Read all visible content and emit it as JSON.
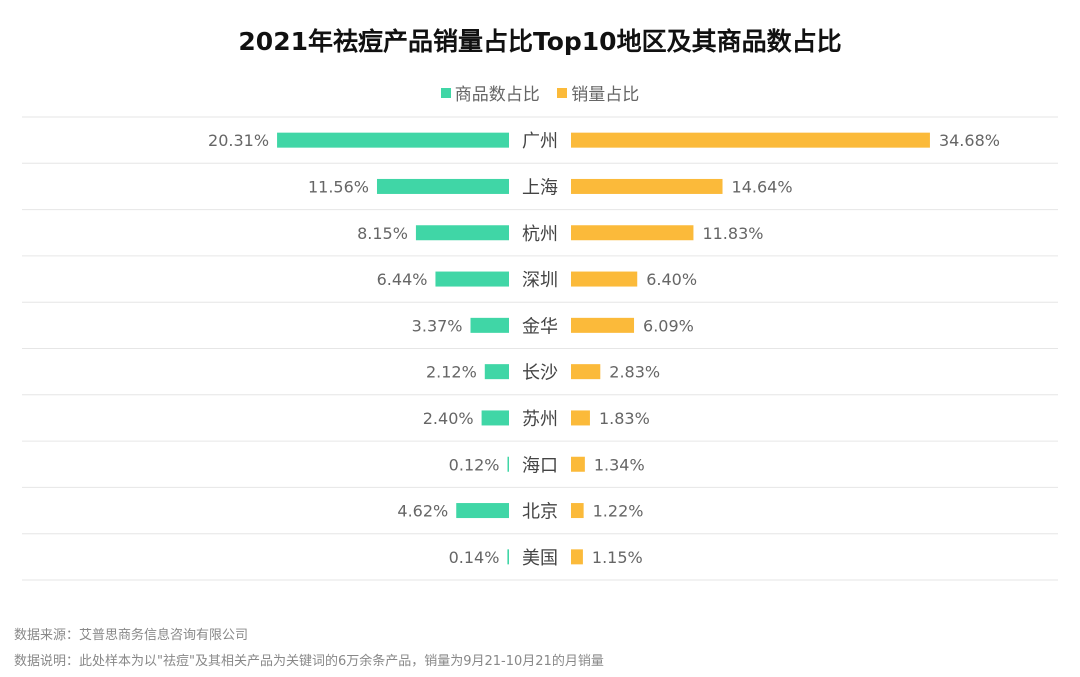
{
  "chart_data": {
    "type": "bar",
    "orientation": "horizontal-butterfly",
    "title": "2021年祛痘产品销量占比Top10地区及其商品数占比",
    "categories": [
      "广州",
      "上海",
      "杭州",
      "深圳",
      "金华",
      "长沙",
      "苏州",
      "海口",
      "北京",
      "美国"
    ],
    "series": [
      {
        "name": "商品数占比",
        "color": "#40D6A6",
        "side": "left",
        "values": [
          20.31,
          11.56,
          8.15,
          6.44,
          3.37,
          2.12,
          2.4,
          0.12,
          4.62,
          0.14
        ]
      },
      {
        "name": "销量占比",
        "color": "#FBBA3A",
        "side": "right",
        "values": [
          34.68,
          14.64,
          11.83,
          6.4,
          6.09,
          2.83,
          1.83,
          1.34,
          1.22,
          1.15
        ]
      }
    ],
    "value_format": "%",
    "legend_position": "top",
    "grid": true
  },
  "footnotes": {
    "source": "数据来源：艾普思商务信息咨询有限公司",
    "note": "数据说明：此处样本为以\"祛痘\"及其相关产品为关键词的6万余条产品，销量为9月21-10月21的月销量"
  }
}
